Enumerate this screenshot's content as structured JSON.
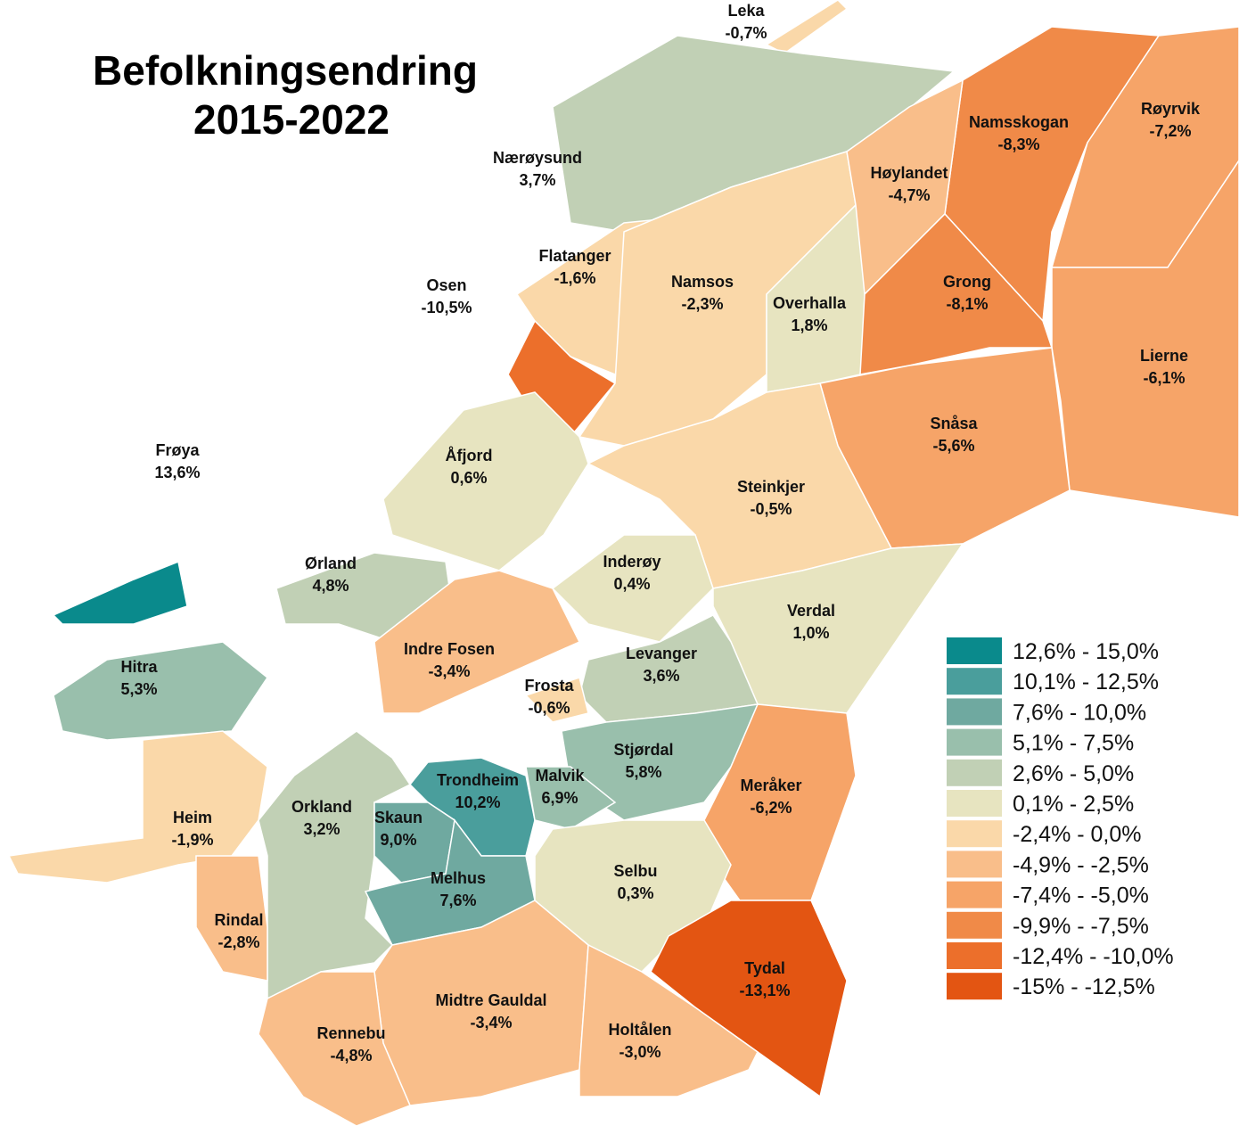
{
  "title": [
    "Befolkningsendring",
    "2015-2022"
  ],
  "municipalities": [
    {
      "name": "Leka",
      "change": "-0,7%",
      "color": "#fad8a9"
    },
    {
      "name": "Nærøysund",
      "change": "3,7%",
      "color": "#c1d0b5"
    },
    {
      "name": "Flatanger",
      "change": "-1,6%",
      "color": "#fad8a9"
    },
    {
      "name": "Osen",
      "change": "-10,5%",
      "color": "#ec6f2b"
    },
    {
      "name": "Namsos",
      "change": "-2,3%",
      "color": "#fad8a9"
    },
    {
      "name": "Overhalla",
      "change": "1,8%",
      "color": "#e7e4c0"
    },
    {
      "name": "Namsskogan",
      "change": "-8,3%",
      "color": "#f08a48"
    },
    {
      "name": "Røyrvik",
      "change": "-7,2%",
      "color": "#f6a468"
    },
    {
      "name": "Høylandet",
      "change": "-4,7%",
      "color": "#f9be8a"
    },
    {
      "name": "Grong",
      "change": "-8,1%",
      "color": "#f08a48"
    },
    {
      "name": "Lierne",
      "change": "-6,1%",
      "color": "#f6a468"
    },
    {
      "name": "Snåsa",
      "change": "-5,6%",
      "color": "#f6a468"
    },
    {
      "name": "Steinkjer",
      "change": "-0,5%",
      "color": "#fad8a9"
    },
    {
      "name": "Frøya",
      "change": "13,6%",
      "color": "#0a8a8c"
    },
    {
      "name": "Åfjord",
      "change": "0,6%",
      "color": "#e7e4c0"
    },
    {
      "name": "Ørland",
      "change": "4,8%",
      "color": "#c1d0b5"
    },
    {
      "name": "Inderøy",
      "change": "0,4%",
      "color": "#e7e4c0"
    },
    {
      "name": "Verdal",
      "change": "1,0%",
      "color": "#e7e4c0"
    },
    {
      "name": "Indre Fosen",
      "change": "-3,4%",
      "color": "#f9be8a"
    },
    {
      "name": "Levanger",
      "change": "3,6%",
      "color": "#c1d0b5"
    },
    {
      "name": "Hitra",
      "change": "5,3%",
      "color": "#99bfac"
    },
    {
      "name": "Frosta",
      "change": "-0,6%",
      "color": "#fad8a9"
    },
    {
      "name": "Stjørdal",
      "change": "5,8%",
      "color": "#99bfac"
    },
    {
      "name": "Trondheim",
      "change": "10,2%",
      "color": "#4a9e9c"
    },
    {
      "name": "Malvik",
      "change": "6,9%",
      "color": "#99bfac"
    },
    {
      "name": "Meråker",
      "change": "-6,2%",
      "color": "#f6a468"
    },
    {
      "name": "Orkland",
      "change": "3,2%",
      "color": "#c1d0b5"
    },
    {
      "name": "Skaun",
      "change": "9,0%",
      "color": "#6fa9a0"
    },
    {
      "name": "Heim",
      "change": "-1,9%",
      "color": "#fad8a9"
    },
    {
      "name": "Melhus",
      "change": "7,6%",
      "color": "#6fa9a0"
    },
    {
      "name": "Selbu",
      "change": "0,3%",
      "color": "#e7e4c0"
    },
    {
      "name": "Rindal",
      "change": "-2,8%",
      "color": "#f9be8a"
    },
    {
      "name": "Tydal",
      "change": "-13,1%",
      "color": "#e35512"
    },
    {
      "name": "Midtre Gauldal",
      "change": "-3,4%",
      "color": "#f9be8a"
    },
    {
      "name": "Rennebu",
      "change": "-4,8%",
      "color": "#f9be8a"
    },
    {
      "name": "Holtålen",
      "change": "-3,0%",
      "color": "#f9be8a"
    }
  ],
  "legend": [
    {
      "label": "12,6% - 15,0%",
      "color": "#0a8a8c"
    },
    {
      "label": "10,1% - 12,5%",
      "color": "#4a9e9c"
    },
    {
      "label": "7,6% - 10,0%",
      "color": "#6fa9a0"
    },
    {
      "label": "5,1% - 7,5%",
      "color": "#99bfac"
    },
    {
      "label": "2,6% - 5,0%",
      "color": "#c1d0b5"
    },
    {
      "label": "0,1% - 2,5%",
      "color": "#e7e4c0"
    },
    {
      "label": "-2,4% - 0,0%",
      "color": "#fad8a9"
    },
    {
      "label": "-4,9% - -2,5%",
      "color": "#f9be8a"
    },
    {
      "label": "-7,4% - -5,0%",
      "color": "#f6a468"
    },
    {
      "label": "-9,9% - -7,5%",
      "color": "#f08a48"
    },
    {
      "label": "-12,4% - -10,0%",
      "color": "#ec6f2b"
    },
    {
      "label": "-15% - -12,5%",
      "color": "#e35512"
    }
  ]
}
